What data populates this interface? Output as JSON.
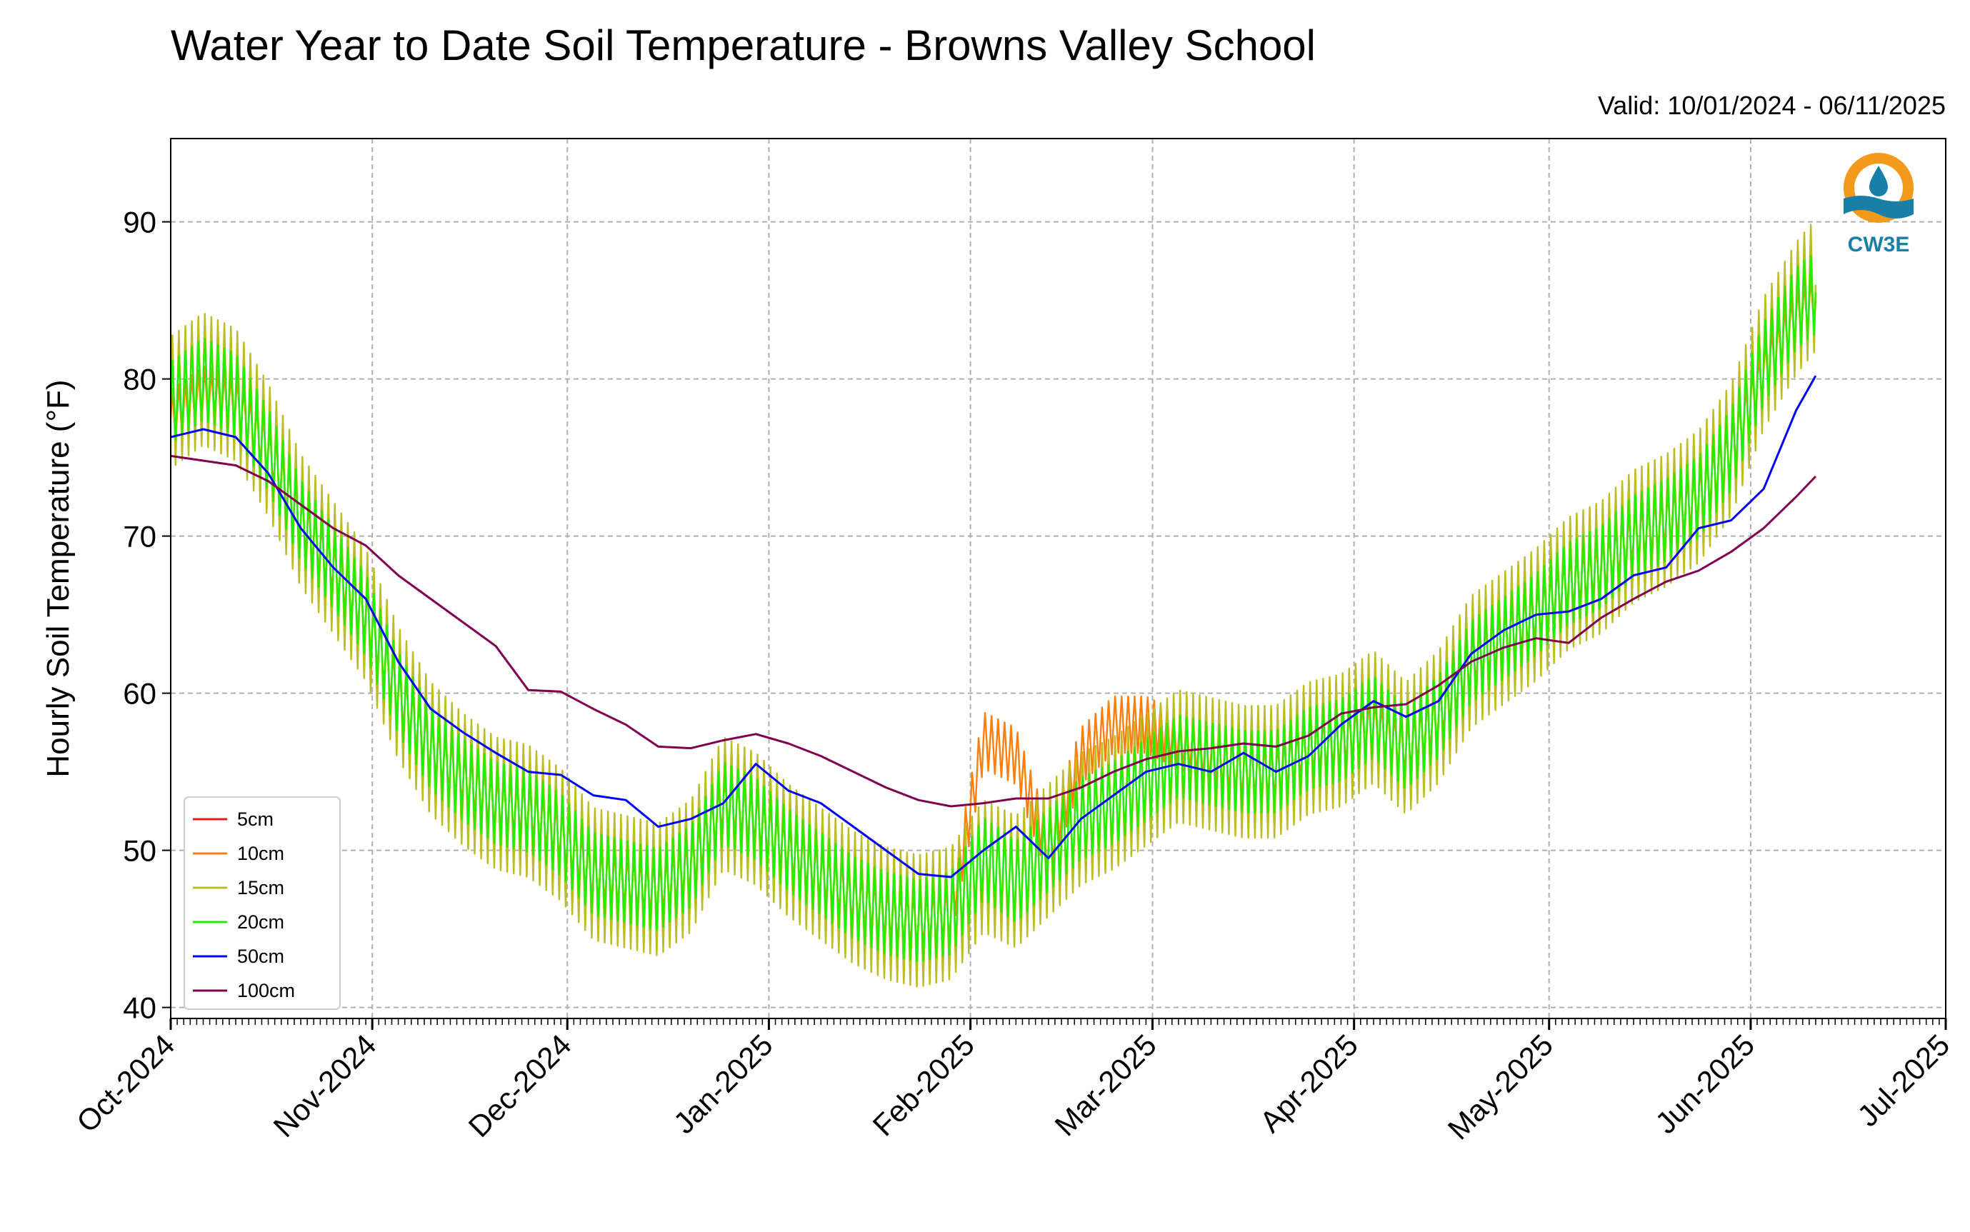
{
  "chart_data": {
    "type": "line",
    "title": "Water Year to Date Soil Temperature - Browns Valley School",
    "subtitle": "Valid: 10/01/2024 - 06/11/2025",
    "ylabel": "Hourly Soil Temperature (°F)",
    "xlabel": "",
    "xlim": [
      "2024-10-01",
      "2025-07-01"
    ],
    "ylim": [
      39.3,
      95.3
    ],
    "yticks": [
      40,
      50,
      60,
      70,
      80,
      90
    ],
    "xtick_labels": [
      "Oct-2024",
      "Nov-2024",
      "Dec-2024",
      "Jan-2025",
      "Feb-2025",
      "Mar-2025",
      "Apr-2025",
      "May-2025",
      "Jun-2025",
      "Jul-2025"
    ],
    "xtick_dates": [
      "2024-10-01",
      "2024-11-01",
      "2024-12-01",
      "2025-01-01",
      "2025-02-01",
      "2025-03-01",
      "2025-04-01",
      "2025-05-01",
      "2025-06-01",
      "2025-07-01"
    ],
    "grid": true,
    "legend_position": "lower-left",
    "logo_text": "CW3E",
    "series": [
      {
        "name": "5cm",
        "color": "#e41a1c",
        "x": [],
        "y": []
      },
      {
        "name": "10cm",
        "color": "#ff7f0e",
        "amplitude": 1.8,
        "x": [
          "2024-10-01",
          "2024-10-06",
          "2024-10-11",
          "2024-10-16",
          "2024-10-21",
          "2024-10-26",
          "2024-10-31",
          "2024-11-05",
          "2024-11-10",
          "2024-11-15",
          "2024-11-20",
          "2024-11-25",
          "2024-11-30",
          "2024-12-05",
          "2024-12-10",
          "2024-12-15",
          "2024-12-20",
          "2024-12-25",
          "2024-12-30",
          "2025-01-04",
          "2025-01-09",
          "2025-01-14",
          "2025-01-19",
          "2025-01-24",
          "2025-01-29",
          "2025-02-03",
          "2025-02-08",
          "2025-02-13",
          "2025-02-18",
          "2025-02-23",
          "2025-02-28",
          "2025-03-05",
          "2025-03-10",
          "2025-03-15",
          "2025-03-20",
          "2025-03-25",
          "2025-03-30",
          "2025-04-04",
          "2025-04-09",
          "2025-04-14",
          "2025-04-19",
          "2025-04-24",
          "2025-04-29",
          "2025-05-04",
          "2025-05-09",
          "2025-05-14",
          "2025-05-19",
          "2025-05-24",
          "2025-05-29",
          "2025-06-03",
          "2025-06-08",
          "2025-06-11"
        ],
        "y": [
          77.5,
          79,
          78.5,
          75.5,
          71,
          68,
          65,
          60,
          56.5,
          54.5,
          53,
          52.5,
          51,
          48.5,
          48,
          47.5,
          49,
          53,
          52,
          50,
          48.5,
          47,
          46,
          45.5,
          46,
          57,
          56,
          50,
          56,
          58,
          58,
          57,
          56,
          55,
          55,
          56.5,
          57,
          58,
          56.5,
          58.5,
          62,
          63.5,
          65,
          67,
          68,
          70,
          71,
          72.5,
          75.5,
          80.5,
          84,
          85
        ]
      },
      {
        "name": "15cm",
        "color": "#bcbd22",
        "amplitude": 4.2,
        "x": [
          "2024-10-01",
          "2024-10-06",
          "2024-10-11",
          "2024-10-16",
          "2024-10-21",
          "2024-10-26",
          "2024-10-31",
          "2024-11-05",
          "2024-11-10",
          "2024-11-15",
          "2024-11-20",
          "2024-11-25",
          "2024-11-30",
          "2024-12-05",
          "2024-12-10",
          "2024-12-15",
          "2024-12-20",
          "2024-12-25",
          "2024-12-30",
          "2025-01-04",
          "2025-01-09",
          "2025-01-14",
          "2025-01-19",
          "2025-01-24",
          "2025-01-29",
          "2025-02-03",
          "2025-02-08",
          "2025-02-13",
          "2025-02-18",
          "2025-02-23",
          "2025-02-28",
          "2025-03-05",
          "2025-03-10",
          "2025-03-15",
          "2025-03-20",
          "2025-03-25",
          "2025-03-30",
          "2025-04-04",
          "2025-04-09",
          "2025-04-14",
          "2025-04-19",
          "2025-04-24",
          "2025-04-29",
          "2025-05-04",
          "2025-05-09",
          "2025-05-14",
          "2025-05-19",
          "2025-05-24",
          "2025-05-29",
          "2025-06-03",
          "2025-06-08",
          "2025-06-11"
        ],
        "y": [
          78.5,
          80,
          79,
          75.5,
          71,
          68,
          65,
          60,
          56.5,
          54.5,
          53,
          52.5,
          51,
          48.5,
          48,
          47.5,
          49,
          53,
          52,
          50,
          48.5,
          47,
          46,
          45.5,
          46,
          49,
          48,
          50,
          52,
          53,
          54.5,
          56,
          55.5,
          55,
          55,
          56.5,
          57,
          58.5,
          56.5,
          58.5,
          62,
          63.5,
          65,
          67,
          68,
          70,
          71,
          72.5,
          75.5,
          81,
          84.5,
          86
        ]
      },
      {
        "name": "20cm",
        "color": "#22ee00",
        "amplitude": 2.6,
        "x": [
          "2024-10-01",
          "2024-10-06",
          "2024-10-11",
          "2024-10-16",
          "2024-10-21",
          "2024-10-26",
          "2024-10-31",
          "2024-11-05",
          "2024-11-10",
          "2024-11-15",
          "2024-11-20",
          "2024-11-25",
          "2024-11-30",
          "2024-12-05",
          "2024-12-10",
          "2024-12-15",
          "2024-12-20",
          "2024-12-25",
          "2024-12-30",
          "2025-01-04",
          "2025-01-09",
          "2025-01-14",
          "2025-01-19",
          "2025-01-24",
          "2025-01-29",
          "2025-02-03",
          "2025-02-08",
          "2025-02-13",
          "2025-02-18",
          "2025-02-23",
          "2025-02-28",
          "2025-03-05",
          "2025-03-10",
          "2025-03-15",
          "2025-03-20",
          "2025-03-25",
          "2025-03-30",
          "2025-04-04",
          "2025-04-09",
          "2025-04-14",
          "2025-04-19",
          "2025-04-24",
          "2025-04-29",
          "2025-05-04",
          "2025-05-09",
          "2025-05-14",
          "2025-05-19",
          "2025-05-24",
          "2025-05-29",
          "2025-06-03",
          "2025-06-08",
          "2025-06-11"
        ],
        "y": [
          78.5,
          80,
          79,
          75.5,
          71,
          68,
          65,
          60,
          56.5,
          54.5,
          53,
          52.5,
          51,
          48.5,
          48,
          47.5,
          49,
          53,
          52,
          50,
          48.5,
          47,
          46,
          45.5,
          46,
          49.5,
          48,
          50,
          52,
          53,
          54.5,
          56,
          55.5,
          55,
          55,
          56.5,
          57,
          58.5,
          56.5,
          58.5,
          62,
          63.5,
          65,
          67,
          68,
          70,
          71,
          72.5,
          75.5,
          81,
          84.5,
          85.5
        ]
      },
      {
        "name": "50cm",
        "color": "#0000ff",
        "x": [
          "2024-10-01",
          "2024-10-06",
          "2024-10-11",
          "2024-10-16",
          "2024-10-21",
          "2024-10-26",
          "2024-10-31",
          "2024-11-05",
          "2024-11-10",
          "2024-11-15",
          "2024-11-20",
          "2024-11-25",
          "2024-11-30",
          "2024-12-05",
          "2024-12-10",
          "2024-12-15",
          "2024-12-20",
          "2024-12-25",
          "2024-12-30",
          "2025-01-04",
          "2025-01-09",
          "2025-01-14",
          "2025-01-19",
          "2025-01-24",
          "2025-01-29",
          "2025-02-03",
          "2025-02-08",
          "2025-02-13",
          "2025-02-18",
          "2025-02-23",
          "2025-02-28",
          "2025-03-05",
          "2025-03-10",
          "2025-03-15",
          "2025-03-20",
          "2025-03-25",
          "2025-03-30",
          "2025-04-04",
          "2025-04-09",
          "2025-04-14",
          "2025-04-19",
          "2025-04-24",
          "2025-04-29",
          "2025-05-04",
          "2025-05-09",
          "2025-05-14",
          "2025-05-19",
          "2025-05-24",
          "2025-05-29",
          "2025-06-03",
          "2025-06-08",
          "2025-06-11"
        ],
        "y": [
          76.3,
          76.8,
          76.3,
          74,
          70.5,
          68,
          66,
          62,
          59,
          57.5,
          56.2,
          55,
          54.8,
          53.5,
          53.2,
          51.5,
          52,
          53,
          55.5,
          53.8,
          53,
          51.5,
          50,
          48.5,
          48.3,
          50,
          51.5,
          49.5,
          52,
          53.5,
          55,
          55.5,
          55,
          56.2,
          55,
          56,
          58,
          59.5,
          58.5,
          59.5,
          62.5,
          64,
          65,
          65.2,
          66,
          67.5,
          68,
          70.5,
          71,
          73,
          78,
          80.2
        ]
      },
      {
        "name": "100cm",
        "color": "#800050",
        "x": [
          "2024-10-01",
          "2024-10-06",
          "2024-10-11",
          "2024-10-16",
          "2024-10-21",
          "2024-10-26",
          "2024-10-31",
          "2024-11-05",
          "2024-11-10",
          "2024-11-15",
          "2024-11-20",
          "2024-11-25",
          "2024-11-30",
          "2024-12-05",
          "2024-12-10",
          "2024-12-15",
          "2024-12-20",
          "2024-12-25",
          "2024-12-30",
          "2025-01-04",
          "2025-01-09",
          "2025-01-14",
          "2025-01-19",
          "2025-01-24",
          "2025-01-29",
          "2025-02-03",
          "2025-02-08",
          "2025-02-13",
          "2025-02-18",
          "2025-02-23",
          "2025-02-28",
          "2025-03-05",
          "2025-03-10",
          "2025-03-15",
          "2025-03-20",
          "2025-03-25",
          "2025-03-30",
          "2025-04-04",
          "2025-04-09",
          "2025-04-14",
          "2025-04-19",
          "2025-04-24",
          "2025-04-29",
          "2025-05-04",
          "2025-05-09",
          "2025-05-14",
          "2025-05-19",
          "2025-05-24",
          "2025-05-29",
          "2025-06-03",
          "2025-06-08",
          "2025-06-11"
        ],
        "y": [
          75.1,
          74.8,
          74.5,
          73.5,
          72,
          70.5,
          69.4,
          67.5,
          66,
          64.5,
          63,
          60.2,
          60.1,
          59,
          58,
          56.6,
          56.5,
          57,
          57.4,
          56.8,
          56,
          55,
          54,
          53.2,
          52.8,
          53,
          53.3,
          53.3,
          54,
          55,
          55.8,
          56.3,
          56.5,
          56.8,
          56.6,
          57.3,
          58.7,
          59.1,
          59.3,
          60.5,
          62,
          62.9,
          63.5,
          63.2,
          64.8,
          66,
          67.1,
          67.8,
          69,
          70.5,
          72.5,
          73.8
        ]
      }
    ]
  }
}
